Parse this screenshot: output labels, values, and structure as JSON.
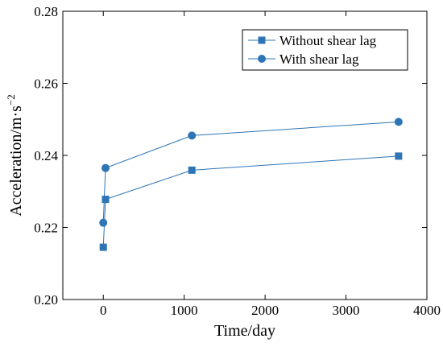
{
  "chart_data": {
    "type": "line",
    "xlabel": "Time/day",
    "ylabel_base": "Acceleration/m·s",
    "ylabel_exp": "−2",
    "xlim": [
      -500,
      4000
    ],
    "ylim": [
      0.2,
      0.28
    ],
    "x_ticks": [
      0,
      1000,
      2000,
      3000,
      4000
    ],
    "x_tick_labels": [
      "0",
      "1000",
      "2000",
      "3000",
      "4000"
    ],
    "y_ticks": [
      0.2,
      0.22,
      0.24,
      0.26,
      0.28
    ],
    "y_tick_labels": [
      "0.20",
      "0.22",
      "0.24",
      "0.26",
      "0.28"
    ],
    "grid": false,
    "legend_position": "top-right",
    "series_color": "#2e75b6",
    "series": [
      {
        "name": "Without shear lag",
        "marker": "square",
        "x": [
          0,
          28,
          1095,
          3650
        ],
        "y": [
          0.2145,
          0.2278,
          0.2359,
          0.2398
        ]
      },
      {
        "name": "With shear lag",
        "marker": "circle",
        "x": [
          0,
          28,
          1095,
          3650
        ],
        "y": [
          0.2213,
          0.2365,
          0.2455,
          0.2493
        ]
      }
    ]
  }
}
